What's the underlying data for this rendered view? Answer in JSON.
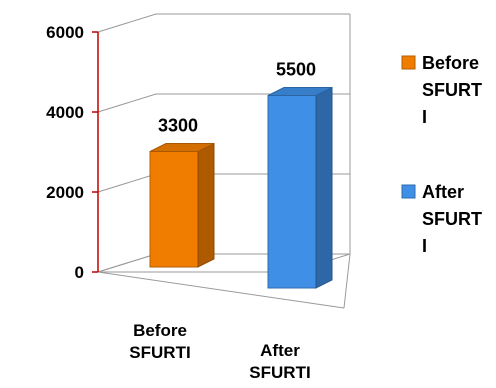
{
  "chart_data": {
    "type": "bar",
    "style": "3d-column",
    "categories": [
      "Before SFURTI",
      "After SFURTI"
    ],
    "category_lines": [
      [
        "Before",
        "SFURTI"
      ],
      [
        "After",
        "SFURTI"
      ]
    ],
    "values": [
      3300,
      5500
    ],
    "data_labels": [
      "3300",
      "5500"
    ],
    "ylim": [
      0,
      6000
    ],
    "yticks": [
      0,
      2000,
      4000,
      6000
    ],
    "ytick_labels": [
      "0",
      "2000",
      "4000",
      "6000"
    ],
    "grid": true,
    "legend_position": "right",
    "legend": [
      {
        "lines": [
          "Before",
          "SFURT",
          "I"
        ],
        "color": "#f07d00"
      },
      {
        "lines": [
          "After",
          "SFURT",
          "I"
        ],
        "color": "#3f8fe6"
      }
    ],
    "axis_color": "#c00000"
  }
}
